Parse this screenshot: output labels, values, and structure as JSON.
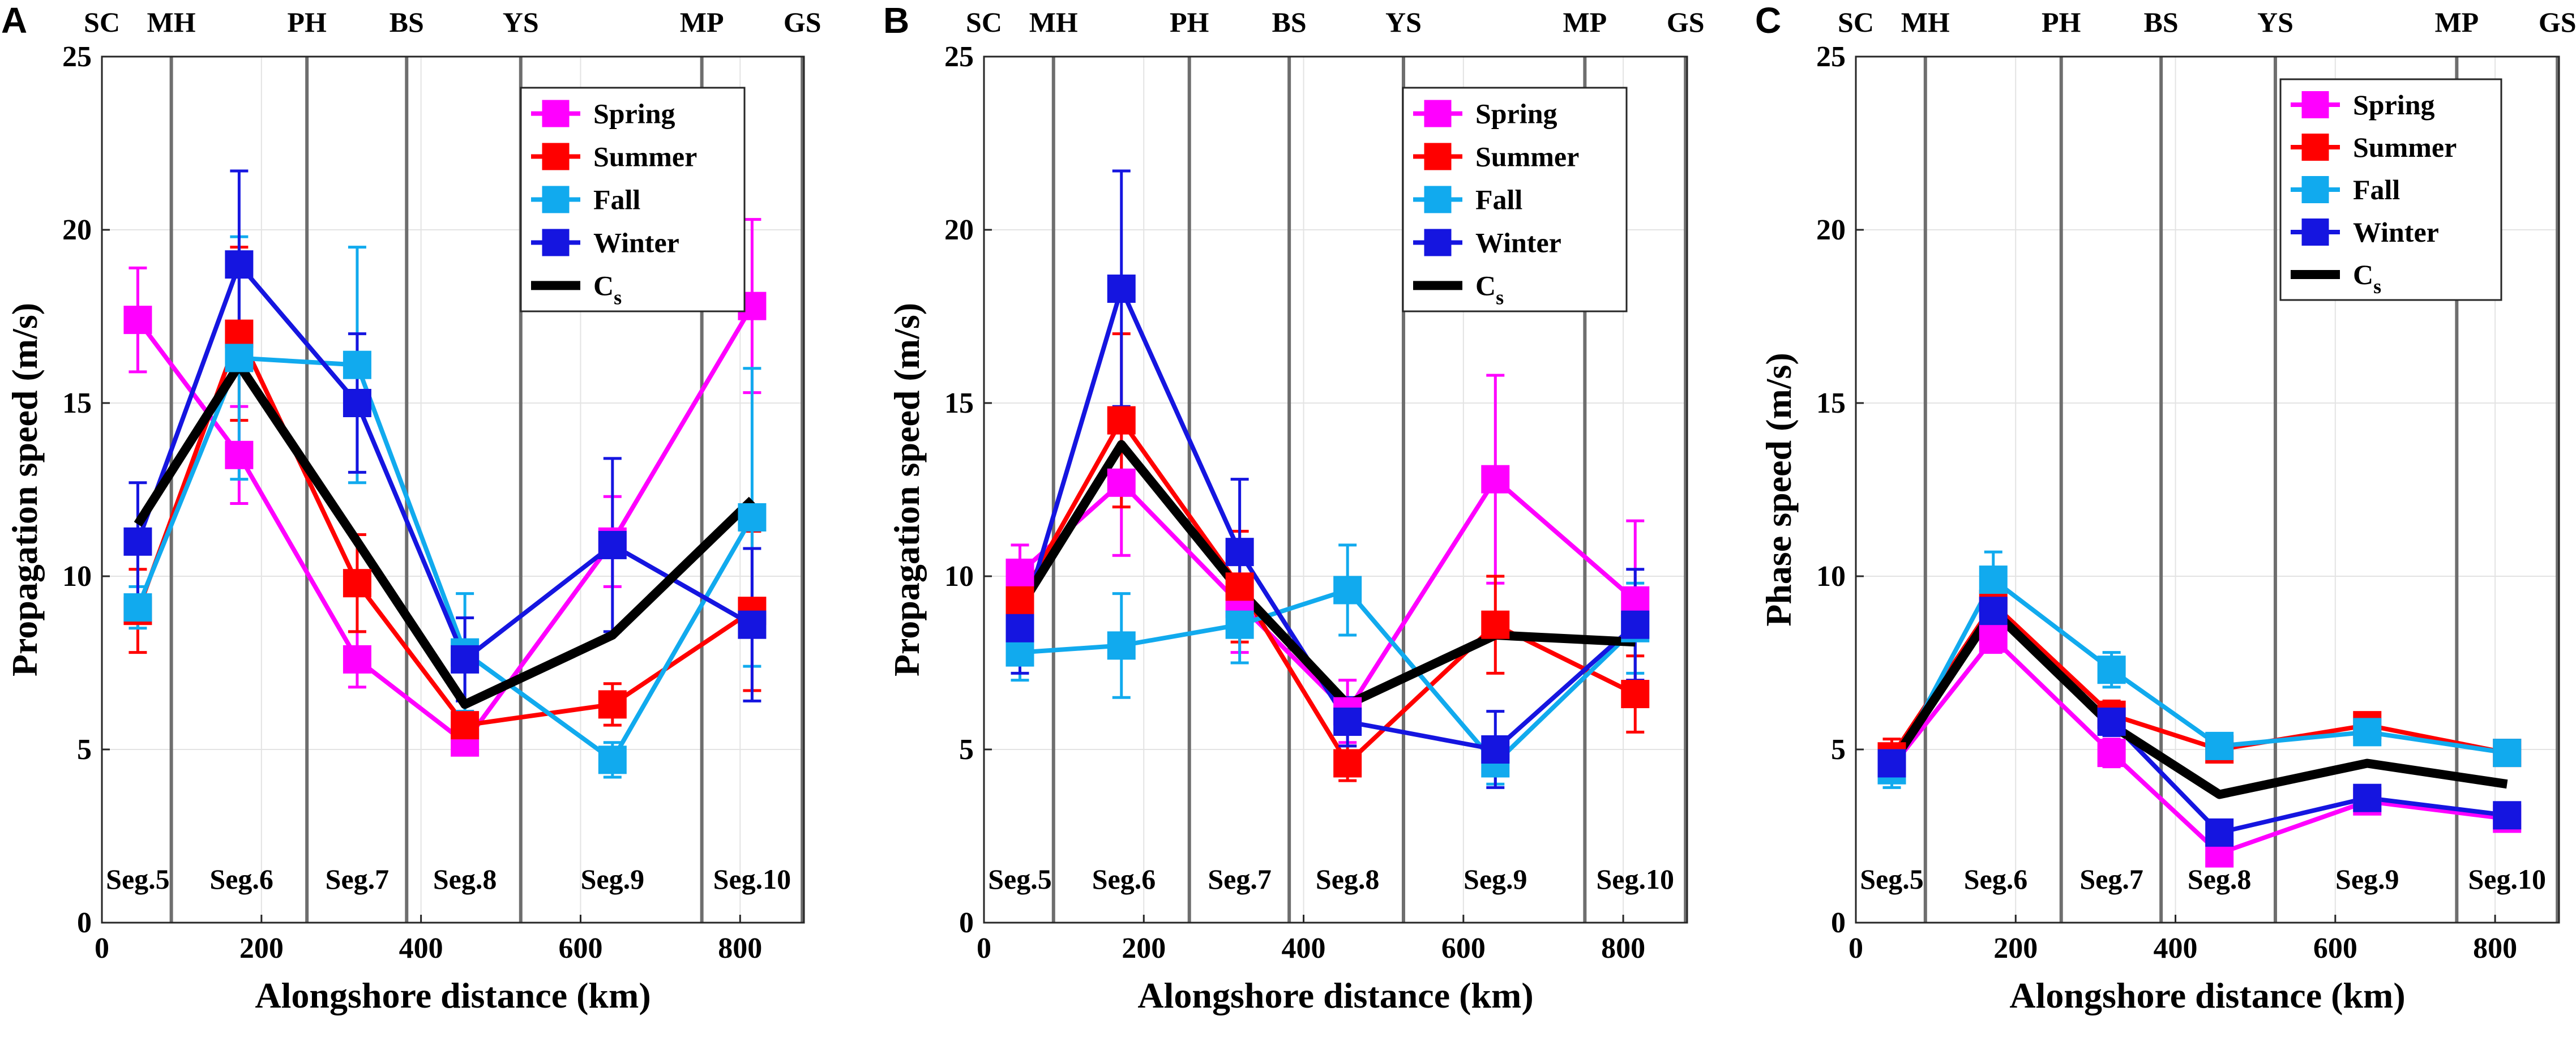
{
  "chart_data": [
    {
      "type": "line",
      "panel": "A",
      "ylabel": "Propagation speed (m/s)",
      "xlabel": "Alongshore distance (km)",
      "xlim": [
        0,
        880
      ],
      "ylim": [
        0,
        25
      ],
      "xticks": [
        "0",
        "200",
        "400",
        "600",
        "800"
      ],
      "yticks": [
        "0",
        "5",
        "10",
        "15",
        "20",
        "25"
      ],
      "boundaries": [
        87,
        257,
        382,
        525,
        752,
        878
      ],
      "stations": [
        {
          "label": "SC",
          "x": 0
        },
        {
          "label": "MH",
          "x": 87
        },
        {
          "label": "PH",
          "x": 257
        },
        {
          "label": "BS",
          "x": 382
        },
        {
          "label": "YS",
          "x": 525
        },
        {
          "label": "MP",
          "x": 752
        },
        {
          "label": "GS",
          "x": 878
        }
      ],
      "segments": [
        {
          "label": "Seg.5",
          "x": 45
        },
        {
          "label": "Seg.6",
          "x": 175
        },
        {
          "label": "Seg.7",
          "x": 320
        },
        {
          "label": "Seg.8",
          "x": 455
        },
        {
          "label": "Seg.9",
          "x": 640
        },
        {
          "label": "Seg.10",
          "x": 815
        }
      ],
      "x": [
        45,
        172,
        320,
        455,
        640,
        815
      ],
      "series": [
        {
          "name": "Spring",
          "color": "#ff00ff",
          "values": [
            17.4,
            13.5,
            7.6,
            5.2,
            11.0,
            17.8
          ],
          "err": [
            1.5,
            1.4,
            0.8,
            0.3,
            1.3,
            2.5
          ]
        },
        {
          "name": "Summer",
          "color": "#ff0000",
          "values": [
            9.0,
            17.0,
            9.8,
            5.7,
            6.3,
            9.0
          ],
          "err": [
            1.2,
            2.5,
            1.4,
            0.4,
            0.6,
            2.3
          ]
        },
        {
          "name": "Fall",
          "color": "#11aaee",
          "values": [
            9.1,
            16.3,
            16.1,
            7.8,
            4.7,
            11.7
          ],
          "err": [
            0.6,
            3.5,
            3.4,
            1.7,
            0.5,
            4.3
          ]
        },
        {
          "name": "Winter",
          "color": "#1515e0",
          "values": [
            11.0,
            19.0,
            15.0,
            7.6,
            10.9,
            8.6
          ],
          "err": [
            1.7,
            2.7,
            2.0,
            1.2,
            2.5,
            2.2
          ]
        }
      ],
      "cs": {
        "name": "Cs",
        "values": [
          11.5,
          16.1,
          11.0,
          6.3,
          8.3,
          12.2
        ]
      },
      "legend": [
        {
          "label": "Spring",
          "sub": ""
        },
        {
          "label": "Summer",
          "sub": ""
        },
        {
          "label": "Fall",
          "sub": ""
        },
        {
          "label": "Winter",
          "sub": ""
        },
        {
          "label": "C",
          "sub": "s"
        }
      ]
    },
    {
      "type": "line",
      "panel": "B",
      "ylabel": "Propagation speed (m/s)",
      "xlabel": "Alongshore distance (km)",
      "xlim": [
        0,
        880
      ],
      "ylim": [
        0,
        25
      ],
      "xticks": [
        "0",
        "200",
        "400",
        "600",
        "800"
      ],
      "yticks": [
        "0",
        "5",
        "10",
        "15",
        "20",
        "25"
      ],
      "boundaries": [
        87,
        257,
        382,
        525,
        752,
        878
      ],
      "stations": [
        {
          "label": "SC",
          "x": 0
        },
        {
          "label": "MH",
          "x": 87
        },
        {
          "label": "PH",
          "x": 257
        },
        {
          "label": "BS",
          "x": 382
        },
        {
          "label": "YS",
          "x": 525
        },
        {
          "label": "MP",
          "x": 752
        },
        {
          "label": "GS",
          "x": 878
        }
      ],
      "segments": [
        {
          "label": "Seg.5",
          "x": 45
        },
        {
          "label": "Seg.6",
          "x": 175
        },
        {
          "label": "Seg.7",
          "x": 320
        },
        {
          "label": "Seg.8",
          "x": 455
        },
        {
          "label": "Seg.9",
          "x": 640
        },
        {
          "label": "Seg.10",
          "x": 815
        }
      ],
      "x": [
        45,
        172,
        320,
        455,
        640,
        815
      ],
      "series": [
        {
          "name": "Spring",
          "color": "#ff00ff",
          "values": [
            10.1,
            12.7,
            9.2,
            6.1,
            12.8,
            9.3
          ],
          "err": [
            0.8,
            2.1,
            1.4,
            0.9,
            3.0,
            2.3
          ]
        },
        {
          "name": "Summer",
          "color": "#ff0000",
          "values": [
            9.3,
            14.5,
            9.7,
            4.6,
            8.6,
            6.6
          ],
          "err": [
            0.8,
            2.5,
            1.6,
            0.5,
            1.4,
            1.1
          ]
        },
        {
          "name": "Fall",
          "color": "#11aaee",
          "values": [
            7.8,
            8.0,
            8.6,
            9.6,
            4.6,
            8.5
          ],
          "err": [
            0.8,
            1.5,
            1.1,
            1.3,
            0.6,
            1.3
          ]
        },
        {
          "name": "Winter",
          "color": "#1515e0",
          "values": [
            8.5,
            18.3,
            10.7,
            5.8,
            5.0,
            8.6
          ],
          "err": [
            1.3,
            3.4,
            2.1,
            0.7,
            1.1,
            1.6
          ]
        }
      ],
      "cs": {
        "name": "Cs",
        "values": [
          9.1,
          13.8,
          9.6,
          6.3,
          8.3,
          8.1
        ]
      },
      "legend": [
        {
          "label": "Spring",
          "sub": ""
        },
        {
          "label": "Summer",
          "sub": ""
        },
        {
          "label": "Fall",
          "sub": ""
        },
        {
          "label": "Winter",
          "sub": ""
        },
        {
          "label": "C",
          "sub": "s"
        }
      ]
    },
    {
      "type": "line",
      "panel": "C",
      "ylabel": "Phase speed (m/s)",
      "xlabel": "Alongshore distance (km)",
      "xlim": [
        0,
        880
      ],
      "ylim": [
        0,
        25
      ],
      "xticks": [
        "0",
        "200",
        "400",
        "600",
        "800"
      ],
      "yticks": [
        "0",
        "5",
        "10",
        "15",
        "20",
        "25"
      ],
      "boundaries": [
        87,
        257,
        382,
        525,
        752,
        878
      ],
      "stations": [
        {
          "label": "SC",
          "x": 0
        },
        {
          "label": "MH",
          "x": 87
        },
        {
          "label": "PH",
          "x": 257
        },
        {
          "label": "BS",
          "x": 382
        },
        {
          "label": "YS",
          "x": 525
        },
        {
          "label": "MP",
          "x": 752
        },
        {
          "label": "GS",
          "x": 878
        }
      ],
      "segments": [
        {
          "label": "Seg.5",
          "x": 45
        },
        {
          "label": "Seg.6",
          "x": 175
        },
        {
          "label": "Seg.7",
          "x": 320
        },
        {
          "label": "Seg.8",
          "x": 455
        },
        {
          "label": "Seg.9",
          "x": 640
        },
        {
          "label": "Seg.10",
          "x": 815
        }
      ],
      "x": [
        45,
        172,
        320,
        455,
        640,
        815
      ],
      "series": [
        {
          "name": "Spring",
          "color": "#ff00ff",
          "values": [
            4.5,
            8.2,
            4.9,
            2.0,
            3.5,
            3.0
          ],
          "err": [
            0.4,
            0.4,
            0.4,
            0.2,
            0.2,
            0.2
          ]
        },
        {
          "name": "Summer",
          "color": "#ff0000",
          "values": [
            4.8,
            9.2,
            6.0,
            5.0,
            5.7,
            4.9
          ],
          "err": [
            0.5,
            0.5,
            0.4,
            0.2,
            0.2,
            0.2
          ]
        },
        {
          "name": "Fall",
          "color": "#11aaee",
          "values": [
            4.4,
            9.9,
            7.3,
            5.1,
            5.5,
            4.9
          ],
          "err": [
            0.5,
            0.8,
            0.5,
            0.2,
            0.2,
            0.2
          ]
        },
        {
          "name": "Winter",
          "color": "#1515e0",
          "values": [
            4.6,
            9.0,
            5.8,
            2.6,
            3.6,
            3.1
          ],
          "err": [
            0.5,
            0.5,
            0.4,
            0.2,
            0.2,
            0.2
          ]
        }
      ],
      "cs": {
        "name": "Cs",
        "values": [
          4.6,
          9.0,
          5.7,
          3.7,
          4.6,
          4.0
        ]
      },
      "legend": [
        {
          "label": "Spring",
          "sub": ""
        },
        {
          "label": "Summer",
          "sub": ""
        },
        {
          "label": "Fall",
          "sub": ""
        },
        {
          "label": "Winter",
          "sub": ""
        },
        {
          "label": "C",
          "sub": "s"
        }
      ]
    }
  ]
}
